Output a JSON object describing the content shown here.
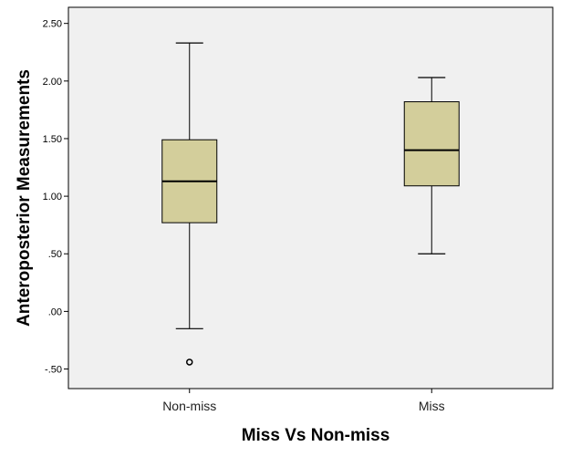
{
  "chart_data": {
    "type": "boxplot",
    "title": "",
    "xlabel": "Miss Vs Non-miss",
    "ylabel": "Anteroposterior Measurements",
    "ylim": [
      -0.67,
      2.64
    ],
    "yticks": [
      {
        "value": 2.5,
        "label": "2.50"
      },
      {
        "value": 2.0,
        "label": "2.00"
      },
      {
        "value": 1.5,
        "label": "1.50"
      },
      {
        "value": 1.0,
        "label": "1.00"
      },
      {
        "value": 0.5,
        "label": ".50"
      },
      {
        "value": 0.0,
        "label": ".00"
      },
      {
        "value": -0.5,
        "label": "-.50"
      }
    ],
    "categories": [
      "Non-miss",
      "Miss"
    ],
    "boxes": [
      {
        "category": "Non-miss",
        "whisker_low": -0.15,
        "q1": 0.77,
        "median": 1.13,
        "q3": 1.49,
        "whisker_high": 2.33,
        "outliers": [
          -0.44
        ]
      },
      {
        "category": "Miss",
        "whisker_low": 0.5,
        "q1": 1.09,
        "median": 1.4,
        "q3": 1.82,
        "whisker_high": 2.03,
        "outliers": []
      }
    ],
    "grid": false,
    "legend": "none",
    "colors": {
      "plot_background": "#f0f0f0",
      "box_fill": "#d3ce9b",
      "line": "#000000"
    }
  }
}
